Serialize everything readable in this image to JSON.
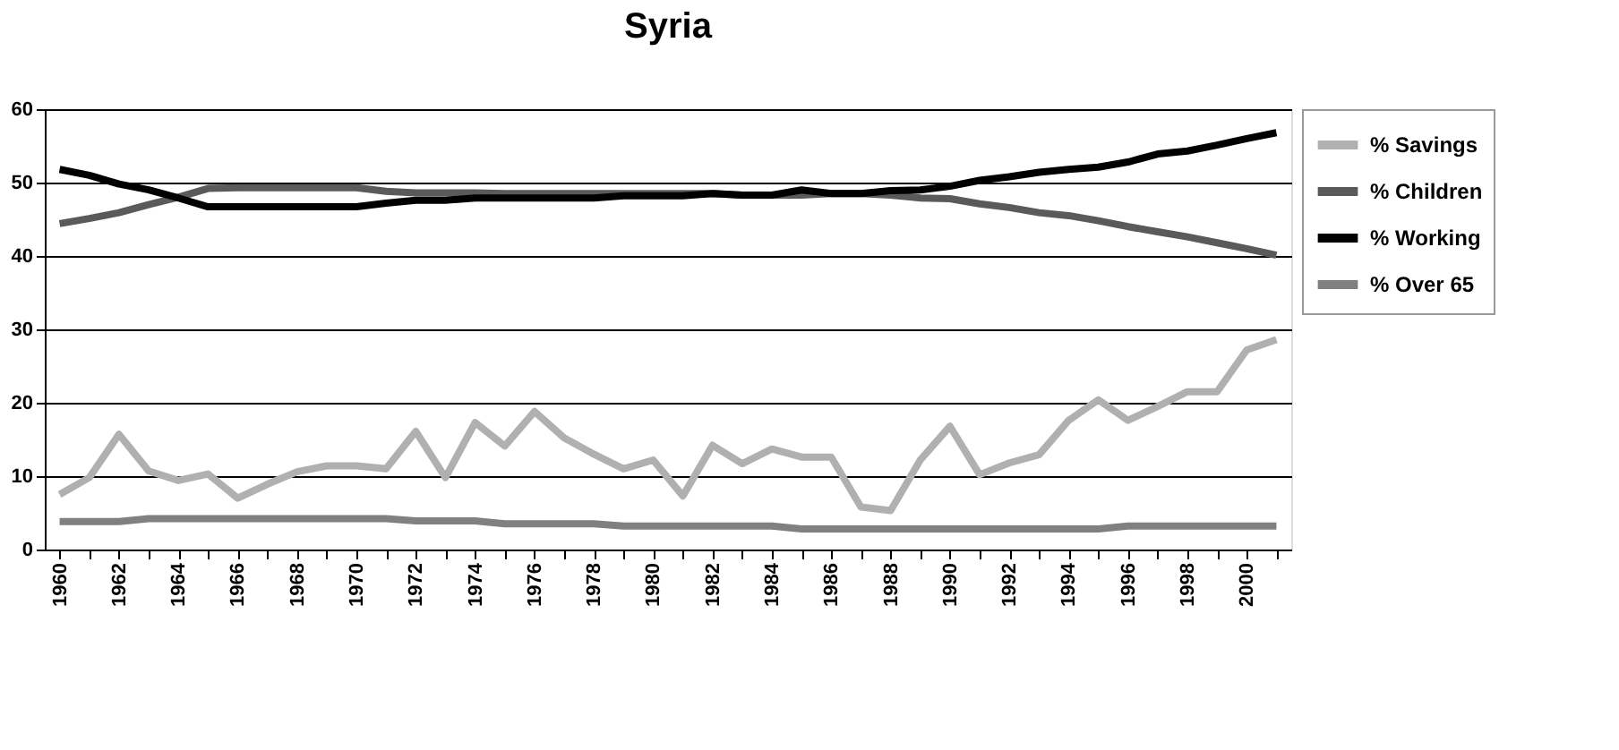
{
  "chart_data": {
    "type": "line",
    "title": "Syria",
    "categories": [
      "1960",
      null,
      "1962",
      null,
      "1964",
      null,
      "1966",
      null,
      "1968",
      null,
      "1970",
      null,
      "1972",
      null,
      "1974",
      null,
      "1976",
      null,
      "1978",
      null,
      "1980",
      null,
      "1982",
      null,
      "1984",
      null,
      "1986",
      null,
      "1988",
      null,
      "1990",
      null,
      "1992",
      null,
      "1994",
      null,
      "1996",
      null,
      "1998",
      null,
      "2000",
      null
    ],
    "series": [
      {
        "name": "% Savings",
        "color": "#b0b0b0",
        "values": [
          7.5,
          9.8,
          15.7,
          10.7,
          9.4,
          10.3,
          7.0,
          8.9,
          10.6,
          11.4,
          11.4,
          11.0,
          16.1,
          9.8,
          17.3,
          14.1,
          18.8,
          15.2,
          13.0,
          11.0,
          12.2,
          7.3,
          14.2,
          11.7,
          13.7,
          12.6,
          12.6,
          5.8,
          5.3,
          12.2,
          16.8,
          10.2,
          11.8,
          12.9,
          17.6,
          20.4,
          17.6,
          19.5,
          21.5,
          21.5,
          27.2,
          28.6
        ]
      },
      {
        "name": "% Children",
        "color": "#5a5a5a",
        "values": [
          44.4,
          45.1,
          45.9,
          47.0,
          48.0,
          49.2,
          49.3,
          49.3,
          49.3,
          49.3,
          49.3,
          48.8,
          48.6,
          48.6,
          48.6,
          48.5,
          48.5,
          48.5,
          48.5,
          48.5,
          48.5,
          48.5,
          48.5,
          48.3,
          48.3,
          48.3,
          48.5,
          48.5,
          48.3,
          47.9,
          47.8,
          47.1,
          46.6,
          45.9,
          45.5,
          44.8,
          44.0,
          43.3,
          42.6,
          41.8,
          41.0,
          40.1
        ]
      },
      {
        "name": "% Working",
        "color": "#000000",
        "values": [
          51.8,
          51.0,
          49.8,
          49.0,
          47.9,
          46.7,
          46.7,
          46.7,
          46.7,
          46.7,
          46.7,
          47.2,
          47.6,
          47.6,
          47.9,
          47.9,
          47.9,
          47.9,
          47.9,
          48.2,
          48.2,
          48.2,
          48.5,
          48.3,
          48.3,
          49.0,
          48.5,
          48.5,
          48.9,
          49.0,
          49.5,
          50.3,
          50.8,
          51.4,
          51.8,
          52.1,
          52.8,
          53.9,
          54.3,
          55.1,
          56.0,
          56.8
        ]
      },
      {
        "name": "% Over 65",
        "color": "#808080",
        "values": [
          3.8,
          3.8,
          3.8,
          4.2,
          4.2,
          4.2,
          4.2,
          4.2,
          4.2,
          4.2,
          4.2,
          4.2,
          3.9,
          3.9,
          3.9,
          3.5,
          3.5,
          3.5,
          3.5,
          3.2,
          3.2,
          3.2,
          3.2,
          3.2,
          3.2,
          2.8,
          2.8,
          2.8,
          2.8,
          2.8,
          2.8,
          2.8,
          2.8,
          2.8,
          2.8,
          2.8,
          3.2,
          3.2,
          3.2,
          3.2,
          3.2,
          3.2
        ]
      }
    ],
    "ylim": [
      0,
      60
    ],
    "yticks": [
      0,
      10,
      20,
      30,
      40,
      50,
      60
    ],
    "grid": "y",
    "legend": "right",
    "marker": "none",
    "line_style": "solid"
  }
}
